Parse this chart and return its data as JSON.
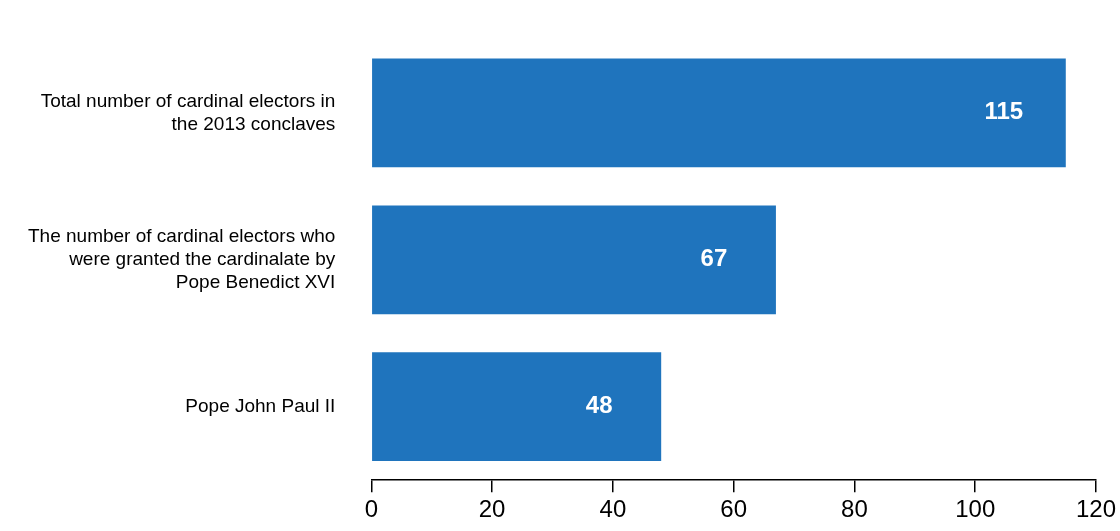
{
  "chart_data": {
    "type": "bar",
    "orientation": "horizontal",
    "categories": [
      "Total number of cardinal electors in the 2013 conclaves",
      "The number of cardinal electors who were granted the cardinalate by Pope Benedict XVI",
      "Pope John Paul II"
    ],
    "values": [
      115,
      67,
      48
    ],
    "color": "#1f74bd",
    "xlim": [
      0,
      120
    ],
    "xticks": [
      0,
      20,
      40,
      60,
      80,
      100,
      120
    ],
    "grid": false,
    "legend": false,
    "data_labels": true
  }
}
